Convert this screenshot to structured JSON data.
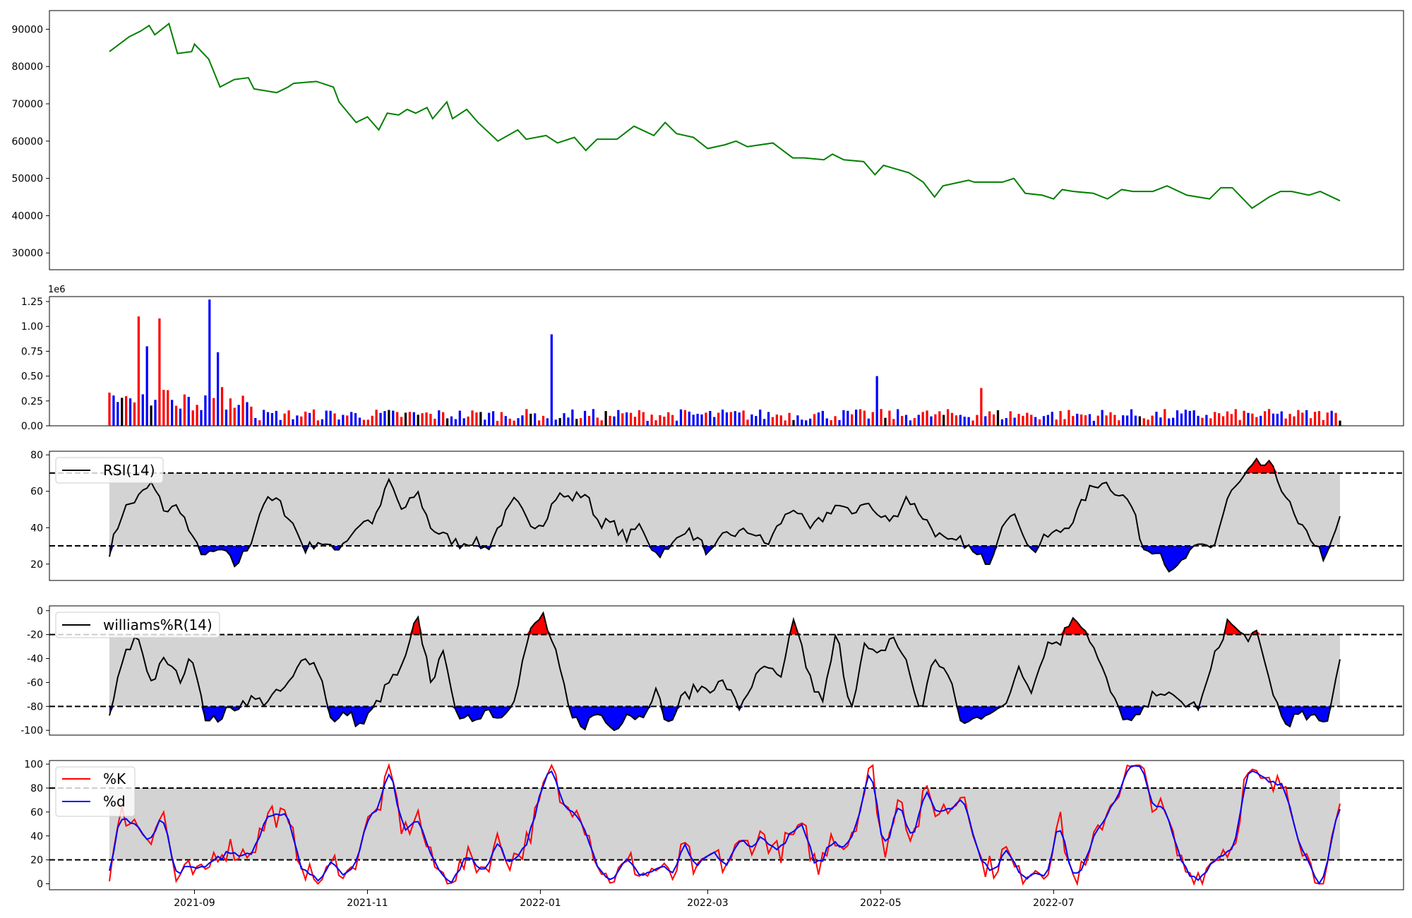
{
  "chart_data": [
    {
      "type": "line",
      "panel": "price",
      "title": "",
      "xlabel": "",
      "ylabel": "",
      "ylim": [
        25500,
        95000
      ],
      "yticks": [
        30000,
        40000,
        50000,
        60000,
        70000,
        80000,
        90000
      ],
      "grid": false,
      "series": [
        {
          "color": "#008000",
          "points": [
            [
              "2021-08-02",
              84000
            ],
            [
              "2021-08-09",
              88000
            ],
            [
              "2021-08-13",
              89500
            ],
            [
              "2021-08-16",
              91000
            ],
            [
              "2021-08-18",
              88500
            ],
            [
              "2021-08-23",
              91500
            ],
            [
              "2021-08-26",
              83500
            ],
            [
              "2021-08-31",
              84000
            ],
            [
              "2021-09-01",
              86000
            ],
            [
              "2021-09-06",
              82000
            ],
            [
              "2021-09-10",
              74500
            ],
            [
              "2021-09-15",
              76500
            ],
            [
              "2021-09-20",
              77000
            ],
            [
              "2021-09-22",
              74000
            ],
            [
              "2021-09-30",
              73000
            ],
            [
              "2021-10-04",
              74500
            ],
            [
              "2021-10-06",
              75500
            ],
            [
              "2021-10-14",
              76000
            ],
            [
              "2021-10-20",
              74500
            ],
            [
              "2021-10-22",
              70500
            ],
            [
              "2021-10-28",
              65000
            ],
            [
              "2021-11-01",
              66500
            ],
            [
              "2021-11-05",
              63000
            ],
            [
              "2021-11-08",
              67500
            ],
            [
              "2021-11-12",
              67000
            ],
            [
              "2021-11-15",
              68500
            ],
            [
              "2021-11-18",
              67500
            ],
            [
              "2021-11-22",
              69000
            ],
            [
              "2021-11-24",
              66000
            ],
            [
              "2021-11-29",
              70500
            ],
            [
              "2021-12-01",
              66000
            ],
            [
              "2021-12-06",
              68500
            ],
            [
              "2021-12-10",
              65000
            ],
            [
              "2021-12-17",
              60000
            ],
            [
              "2021-12-24",
              63000
            ],
            [
              "2021-12-27",
              60500
            ],
            [
              "2022-01-03",
              61500
            ],
            [
              "2022-01-07",
              59500
            ],
            [
              "2022-01-13",
              61000
            ],
            [
              "2022-01-17",
              57500
            ],
            [
              "2022-01-21",
              60500
            ],
            [
              "2022-01-28",
              60500
            ],
            [
              "2022-02-03",
              64000
            ],
            [
              "2022-02-10",
              61500
            ],
            [
              "2022-02-14",
              65000
            ],
            [
              "2022-02-18",
              62000
            ],
            [
              "2022-02-24",
              61000
            ],
            [
              "2022-03-01",
              58000
            ],
            [
              "2022-03-07",
              59000
            ],
            [
              "2022-03-11",
              60000
            ],
            [
              "2022-03-15",
              58500
            ],
            [
              "2022-03-24",
              59500
            ],
            [
              "2022-03-31",
              55500
            ],
            [
              "2022-04-04",
              55500
            ],
            [
              "2022-04-11",
              55000
            ],
            [
              "2022-04-14",
              56500
            ],
            [
              "2022-04-18",
              55000
            ],
            [
              "2022-04-25",
              54500
            ],
            [
              "2022-04-29",
              51000
            ],
            [
              "2022-05-02",
              53500
            ],
            [
              "2022-05-11",
              51500
            ],
            [
              "2022-05-16",
              49000
            ],
            [
              "2022-05-20",
              45000
            ],
            [
              "2022-05-23",
              48000
            ],
            [
              "2022-06-01",
              49500
            ],
            [
              "2022-06-03",
              49000
            ],
            [
              "2022-06-13",
              49000
            ],
            [
              "2022-06-17",
              50000
            ],
            [
              "2022-06-21",
              46000
            ],
            [
              "2022-06-27",
              45500
            ],
            [
              "2022-07-01",
              44500
            ],
            [
              "2022-07-04",
              47000
            ],
            [
              "2022-07-08",
              46500
            ],
            [
              "2022-07-15",
              46000
            ],
            [
              "2022-07-20",
              44500
            ],
            [
              "2022-07-25",
              47000
            ],
            [
              "2022-07-29",
              46500
            ],
            [
              "2022-08-05",
              46500
            ],
            [
              "2022-08-10",
              48000
            ],
            [
              "2022-08-17",
              45500
            ],
            [
              "2022-08-25",
              44500
            ],
            [
              "2022-08-29",
              47500
            ],
            [
              "2022-09-02",
              47500
            ],
            [
              "2022-09-09",
              42000
            ],
            [
              "2022-09-15",
              45000
            ],
            [
              "2022-09-19",
              46500
            ],
            [
              "2022-09-23",
              46500
            ],
            [
              "2022-09-29",
              45500
            ],
            [
              "2022-10-03",
              46500
            ],
            [
              "2022-10-10",
              44000
            ]
          ]
        }
      ]
    },
    {
      "type": "bar",
      "panel": "volume",
      "ylim": [
        0,
        1.3
      ],
      "yticks": [
        0.0,
        0.25,
        0.5,
        0.75,
        1.0,
        1.25
      ],
      "tick_labels": [
        "0.00",
        "0.25",
        "0.50",
        "0.75",
        "1.00",
        "1.25"
      ],
      "offset_label": "1e6",
      "grid": false,
      "colors": {
        "up": "#ff0000",
        "down": "#0000ff",
        "flat": "#000000"
      }
    },
    {
      "type": "area",
      "panel": "rsi",
      "ylim": [
        11,
        82
      ],
      "yticks": [
        20,
        40,
        60,
        80
      ],
      "bands": {
        "upper": 70,
        "lower": 30
      },
      "grid": false,
      "legend": {
        "entries": [
          {
            "label": "RSI(14)",
            "color": "#000000"
          }
        ],
        "placement": "top-left"
      }
    },
    {
      "type": "area",
      "panel": "williams",
      "ylim": [
        -104,
        4
      ],
      "yticks": [
        0,
        -20,
        -40,
        -60,
        -80,
        -100
      ],
      "bands": {
        "upper": -20,
        "lower": -80
      },
      "grid": false,
      "legend": {
        "entries": [
          {
            "label": "williams%R(14)",
            "color": "#000000"
          }
        ],
        "placement": "top-left"
      }
    },
    {
      "type": "line",
      "panel": "stochastic",
      "ylim": [
        -5,
        103
      ],
      "yticks": [
        0,
        20,
        40,
        60,
        80,
        100
      ],
      "bands": {
        "upper": 80,
        "lower": 20
      },
      "grid": false,
      "legend": {
        "entries": [
          {
            "label": "%K",
            "color": "#ff0000"
          },
          {
            "label": "%d",
            "color": "#0000ff"
          }
        ],
        "placement": "top-left"
      },
      "xticks": [
        "2021-09",
        "2021-11",
        "2022-01",
        "2022-03",
        "2022-05",
        "2022-07"
      ]
    }
  ]
}
